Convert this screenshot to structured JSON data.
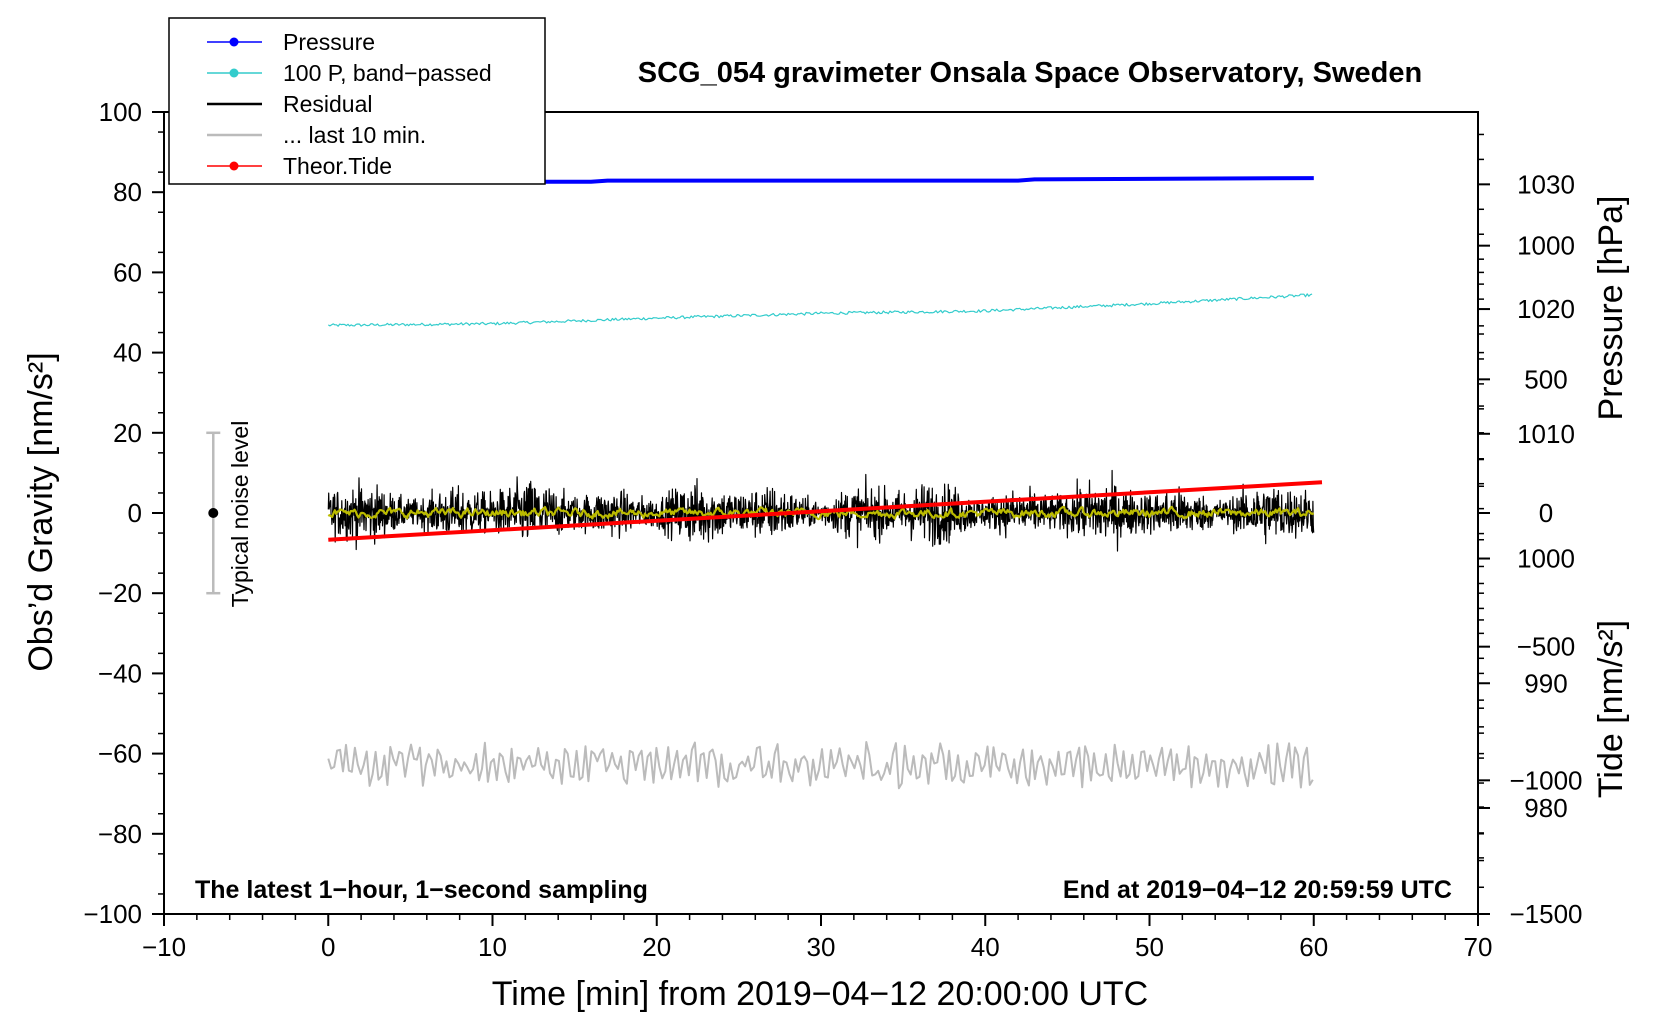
{
  "chart_data": {
    "type": "line",
    "title": "SCG_054 gravimeter Onsala Space Observatory, Sweden",
    "xlabel": "Time [min] from 2019−04−12 20:00:00 UTC",
    "ylabel_left": "Obs’d Gravity [nm/s²]",
    "ylabel_right_top": "Pressure [hPa]",
    "ylabel_right_bottom": "Tide [nm/s²]",
    "xlim": [
      -10,
      70
    ],
    "ylim": [
      -100,
      100
    ],
    "pressure_lim": [
      971.5,
      1035.8
    ],
    "tide_lim": [
      -1500,
      1500
    ],
    "x_ticks": [
      -10,
      0,
      10,
      20,
      30,
      40,
      50,
      60,
      70
    ],
    "x_tick_labels": [
      "−10",
      "0",
      "10",
      "20",
      "30",
      "40",
      "50",
      "60",
      "70"
    ],
    "y_ticks": [
      -100,
      -80,
      -60,
      -40,
      -20,
      0,
      20,
      40,
      60,
      80,
      100
    ],
    "y_tick_labels": [
      "−100",
      "−80",
      "−60",
      "−40",
      "−20",
      "0",
      "20",
      "40",
      "60",
      "80",
      "100"
    ],
    "pressure_ticks": [
      980,
      990,
      1000,
      1010,
      1020,
      1030
    ],
    "pressure_tick_labels": [
      "980",
      "990",
      "1000",
      "1010",
      "1020",
      "1030"
    ],
    "tide_ticks": [
      -1500,
      -1000,
      -500,
      0,
      500,
      1000
    ],
    "tide_tick_labels": [
      "−1500",
      "−1000",
      "−500",
      "0",
      "500",
      "1000"
    ],
    "legend": [
      {
        "name": "Pressure",
        "color": "#0000ff",
        "marker": true
      },
      {
        "name": "100 P, band−passed",
        "color": "#33cccc",
        "marker": true
      },
      {
        "name": "Residual",
        "color": "#000000",
        "marker": false
      },
      {
        "name": "... last 10 min.",
        "color": "#bbbbbb",
        "marker": false
      },
      {
        "name": "Theor.Tide",
        "color": "#ff0000",
        "marker": true
      }
    ],
    "series": [
      {
        "name": "Pressure",
        "color": "#0000ff",
        "axis": "pressure",
        "x": [
          0,
          16,
          17,
          42,
          43,
          60
        ],
        "values": [
          1030.2,
          1030.2,
          1030.3,
          1030.3,
          1030.4,
          1030.5
        ]
      },
      {
        "name": "100 P, band−passed",
        "color": "#33cccc",
        "axis": "left",
        "x": [
          0,
          10,
          20,
          30,
          40,
          50,
          60
        ],
        "values": [
          46.8,
          47.2,
          48.6,
          49.8,
          50.4,
          52.2,
          54.4
        ],
        "noise_amplitude": 0.35
      },
      {
        "name": "Residual",
        "color": "#000000",
        "axis": "left",
        "x_range": [
          0,
          60
        ],
        "mean": 0,
        "amplitude": 9
      },
      {
        "name": "Residual running mean",
        "color": "#bbbb00",
        "axis": "left",
        "x_range": [
          0,
          60
        ],
        "mean": 0,
        "amplitude": 1.2
      },
      {
        "name": "Theor.Tide",
        "color": "#ff0000",
        "axis": "tide",
        "x": [
          0,
          60.5
        ],
        "values": [
          -100,
          115
        ]
      },
      {
        "name": "... last 10 min.",
        "color": "#bbbbbb",
        "axis": "left",
        "x_range": [
          0,
          60
        ],
        "mean": -62,
        "amplitude": 6
      }
    ],
    "noise_bar": {
      "label": "Typical noise level",
      "x": -7,
      "center": 0,
      "low": -20,
      "high": 20
    },
    "annotations": {
      "bottom_left": "The latest 1−hour, 1−second sampling",
      "bottom_right": "End at 2019−04−12 20:59:59 UTC"
    }
  }
}
